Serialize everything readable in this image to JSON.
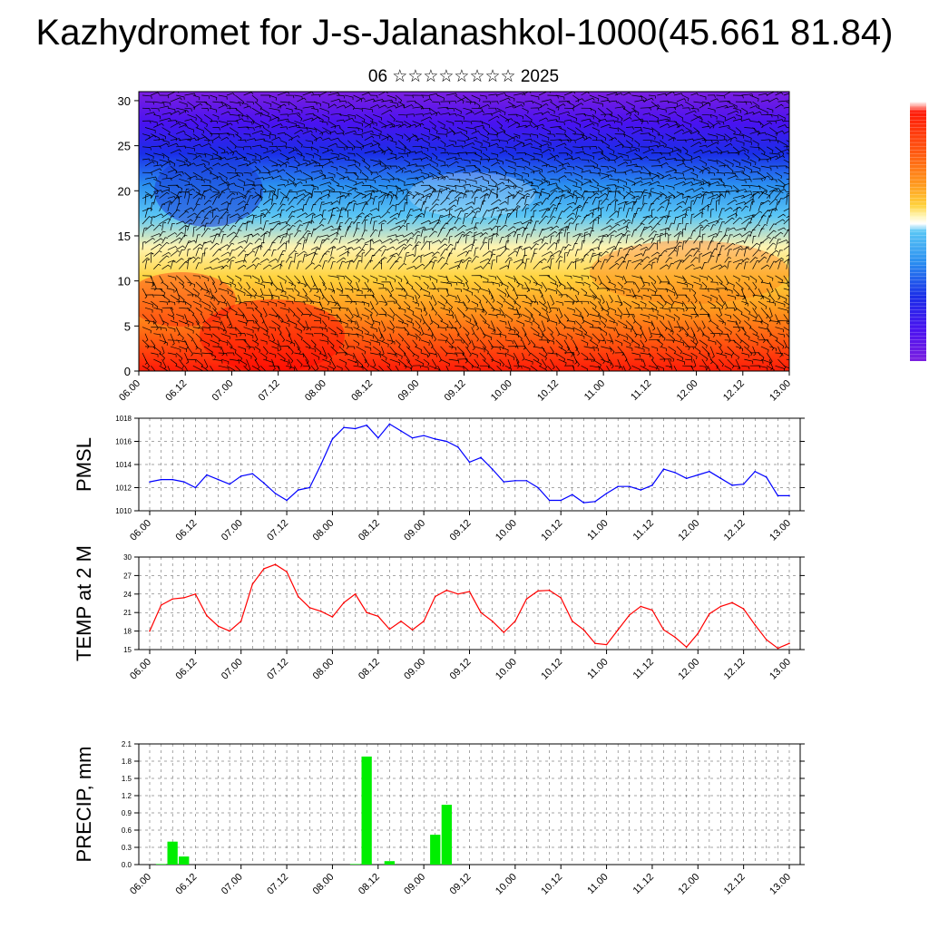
{
  "header": {
    "title": "Kazhydromet for J-s-Jalanashkol-1000(45.661 81.84)",
    "subtitle": "06 ☆☆☆☆☆☆☆☆ 2025"
  },
  "chart_data": [
    {
      "type": "heatmap",
      "title": "",
      "ylim": [
        0,
        31
      ],
      "y_ticks": [
        "0",
        "5",
        "10",
        "15",
        "20",
        "25",
        "30"
      ],
      "x_ticks": [
        "06.00",
        "06.12",
        "07.00",
        "07.12",
        "08.00",
        "08.12",
        "09.00",
        "09.12",
        "10.00",
        "10.12",
        "11.00",
        "11.12",
        "12.00",
        "12.12",
        "13.00"
      ],
      "colormap": [
        "#7b1fe0",
        "#4a12f0",
        "#1a2ee8",
        "#2a8ef0",
        "#5ac6f5",
        "#fff4b0",
        "#ffd23c",
        "#ff9a1e",
        "#ff5a10",
        "#ff1a08"
      ],
      "overlay": "wind barbs",
      "colorbar": "vertical, right"
    },
    {
      "type": "line",
      "ylabel": "PMSL",
      "ylim": [
        1010,
        1018
      ],
      "y_ticks": [
        "1010",
        "1012",
        "1014",
        "1016",
        "1018"
      ],
      "x_ticks": [
        "06.00",
        "06.12",
        "07.00",
        "07.12",
        "08.00",
        "08.12",
        "09.00",
        "09.12",
        "10.00",
        "10.12",
        "11.00",
        "11.12",
        "12.00",
        "12.12",
        "13.00"
      ],
      "color": "#0000ff",
      "values": [
        1012.5,
        1012.7,
        1012.7,
        1012.5,
        1012.0,
        1013.1,
        1012.7,
        1012.3,
        1013.0,
        1013.2,
        1012.4,
        1011.5,
        1010.9,
        1011.8,
        1012.0,
        1014.0,
        1016.2,
        1017.2,
        1017.1,
        1017.4,
        1016.3,
        1017.5,
        1016.9,
        1016.3,
        1016.5,
        1016.2,
        1016.0,
        1015.5,
        1014.2,
        1014.6,
        1013.6,
        1012.5,
        1012.6,
        1012.6,
        1012.0,
        1010.9,
        1010.9,
        1011.4,
        1010.7,
        1010.8,
        1011.5,
        1012.1,
        1012.1,
        1011.8,
        1012.2,
        1013.6,
        1013.3,
        1012.8,
        1013.1,
        1013.4,
        1012.8,
        1012.2,
        1012.3,
        1013.4,
        1012.9,
        1011.3,
        1011.3
      ],
      "grid": true
    },
    {
      "type": "line",
      "ylabel": "TEMP at 2 M",
      "ylim": [
        15,
        30
      ],
      "y_ticks": [
        "15",
        "18",
        "21",
        "24",
        "27",
        "30"
      ],
      "x_ticks": [
        "06.00",
        "06.12",
        "07.00",
        "07.12",
        "08.00",
        "08.12",
        "09.00",
        "09.12",
        "10.00",
        "10.12",
        "11.00",
        "11.12",
        "12.00",
        "12.12",
        "13.00"
      ],
      "color": "#ff0000",
      "values": [
        18.0,
        22.2,
        23.2,
        23.4,
        24.0,
        20.5,
        18.8,
        18.0,
        19.6,
        25.6,
        28.1,
        28.8,
        27.6,
        23.6,
        21.8,
        21.2,
        20.3,
        22.6,
        24.0,
        21.0,
        20.4,
        18.3,
        19.6,
        18.2,
        19.6,
        23.6,
        24.6,
        24.0,
        24.4,
        21.0,
        19.6,
        17.8,
        19.6,
        23.2,
        24.5,
        24.6,
        23.4,
        19.6,
        18.2,
        16.0,
        15.8,
        18.2,
        20.6,
        22.0,
        21.4,
        18.2,
        17.0,
        15.4,
        17.6,
        20.8,
        22.0,
        22.6,
        21.6,
        19.0,
        16.6,
        15.2,
        16.0
      ],
      "grid": true
    },
    {
      "type": "bar",
      "ylabel": "PRECIP, mm",
      "ylim": [
        0,
        2.1
      ],
      "y_ticks": [
        "0.0",
        "0.3",
        "0.6",
        "0.9",
        "1.2",
        "1.5",
        "1.8",
        "2.1"
      ],
      "x_ticks": [
        "06.00",
        "06.12",
        "07.00",
        "07.12",
        "08.00",
        "08.12",
        "09.00",
        "09.12",
        "10.00",
        "10.12",
        "11.00",
        "11.12",
        "12.00",
        "12.12",
        "13.00"
      ],
      "color": "#00ee00",
      "values": [
        0,
        0.01,
        0.4,
        0.14,
        0,
        0,
        0,
        0,
        0,
        0,
        0,
        0,
        0,
        0,
        0,
        0,
        0,
        0,
        0.01,
        1.88,
        0,
        0.06,
        0,
        0,
        0,
        0.52,
        1.04,
        0,
        0,
        0,
        0,
        0,
        0,
        0,
        0,
        0,
        0,
        0,
        0,
        0,
        0,
        0,
        0,
        0,
        0,
        0,
        0,
        0,
        0,
        0,
        0,
        0,
        0,
        0,
        0,
        0,
        0
      ],
      "grid": true
    }
  ]
}
